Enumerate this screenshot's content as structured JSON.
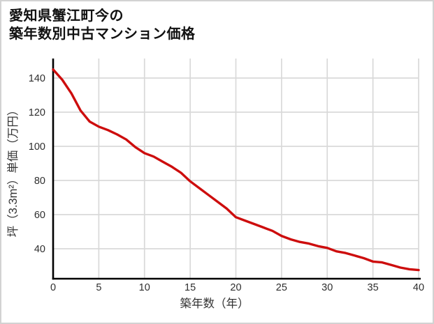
{
  "chart_data": {
    "type": "line",
    "title_line1": "愛知県蟹江町今の",
    "title_line2": "築年数別中古マンション価格",
    "xlabel": "築年数（年）",
    "ylabel": "坪（3.3m²）単価（万円）",
    "x": [
      0,
      1,
      2,
      3,
      4,
      5,
      6,
      7,
      8,
      9,
      10,
      11,
      12,
      13,
      14,
      15,
      16,
      17,
      18,
      19,
      20,
      21,
      22,
      23,
      24,
      25,
      26,
      27,
      28,
      29,
      30,
      31,
      32,
      33,
      34,
      35,
      36,
      37,
      38,
      39,
      40
    ],
    "values": [
      145,
      139,
      131,
      121,
      114.5,
      111.5,
      109.5,
      107,
      104,
      99.5,
      96,
      94,
      91,
      88,
      84.5,
      79.5,
      75.5,
      71.5,
      67.5,
      63.5,
      58.5,
      56.5,
      54.5,
      52.5,
      50.5,
      47.5,
      45.5,
      44,
      43,
      41.5,
      40.5,
      38.5,
      37.5,
      36,
      34.5,
      32.5,
      32,
      30.5,
      29,
      28,
      27.5
    ],
    "x_ticks": [
      0,
      5,
      10,
      15,
      20,
      25,
      30,
      35,
      40
    ],
    "y_ticks": [
      40,
      60,
      80,
      100,
      120,
      140
    ],
    "xlim": [
      0,
      40
    ],
    "ylim": [
      22,
      151
    ],
    "grid": true,
    "legend": "none",
    "line_color": "#cd0d0d",
    "grid_color": "#d9d9d9",
    "axis_color": "#000000",
    "tick_text_color": "#2e2e2e"
  }
}
